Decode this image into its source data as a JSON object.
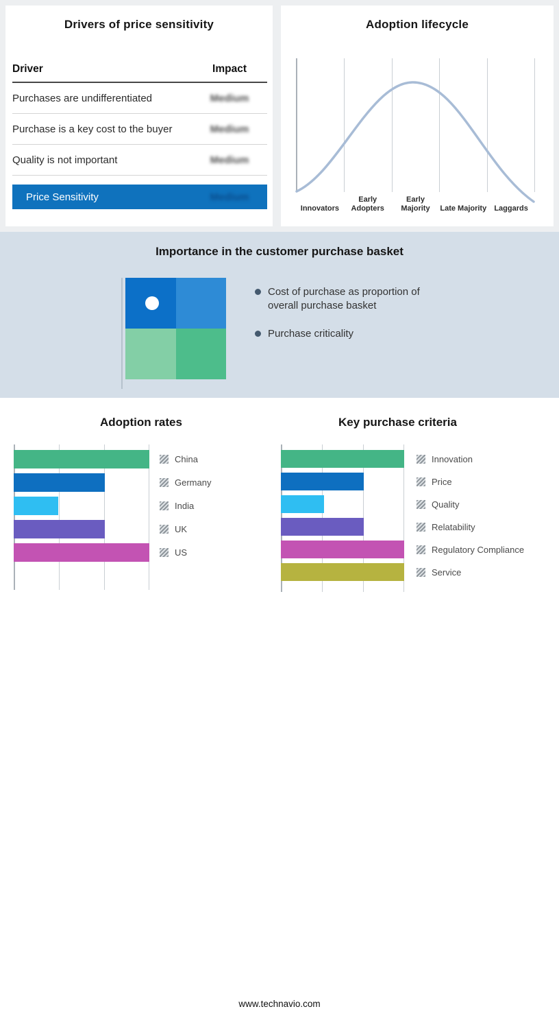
{
  "footer": {
    "url": "www.technavio.com"
  },
  "drivers": {
    "title": "Drivers of price sensitivity",
    "columns": {
      "driver": "Driver",
      "impact": "Impact"
    },
    "rows": [
      {
        "driver": "Purchases are undifferentiated",
        "impact": "Medium"
      },
      {
        "driver": "Purchase is a key cost to the buyer",
        "impact": "Medium"
      },
      {
        "driver": "Quality is not important",
        "impact": "Medium"
      }
    ],
    "highlight_row": {
      "driver": "Price Sensitivity",
      "impact": "Medium"
    },
    "highlight_color": "#0f72bd",
    "impact_values_redacted": true
  },
  "basket": {
    "title": "Importance in the customer purchase basket",
    "bullets": [
      "Cost of purchase as proportion of overall purchase basket",
      "Purchase criticality"
    ],
    "quadrant_colors": {
      "top_left": "#0c70c8",
      "top_right": "#2e8bd6",
      "bottom_left": "#83cfa6",
      "bottom_right": "#4dbd8b"
    }
  },
  "chart_data": [
    {
      "type": "line",
      "title": "Adoption lifecycle",
      "categories": [
        "Innovators",
        "Early Adopters",
        "Early Majority",
        "Late Majority",
        "Laggards"
      ],
      "shape": "bell curve over adoption stages, peak at Early Majority",
      "line_color": "#a8bcd6",
      "grid": "vertical stage separators, no y-axis labels"
    },
    {
      "type": "bar",
      "title": "Adoption rates",
      "orientation": "horizontal",
      "categories": [
        "China",
        "Germany",
        "India",
        "UK",
        "US"
      ],
      "values": [
        100,
        67,
        33,
        67,
        100
      ],
      "unit": "percent of unlabeled axis span",
      "colors": [
        "#44b586",
        "#0e6fc0",
        "#2fbef2",
        "#6a5cc0",
        "#c353b3"
      ],
      "legend_position": "right",
      "grid": "vertical gridlines at 0/33/67/100"
    },
    {
      "type": "bar",
      "title": "Key purchase criteria",
      "orientation": "horizontal",
      "categories": [
        "Innovation",
        "Price",
        "Quality",
        "Relatability",
        "Regulatory Compliance",
        "Service"
      ],
      "values": [
        100,
        67,
        35,
        67,
        100,
        100
      ],
      "unit": "percent of unlabeled axis span",
      "colors": [
        "#44b586",
        "#0e6fc0",
        "#2fbef2",
        "#6a5cc0",
        "#c353b3",
        "#b6b340"
      ],
      "legend_position": "right",
      "grid": "vertical gridlines at 0/33/67/100"
    }
  ]
}
